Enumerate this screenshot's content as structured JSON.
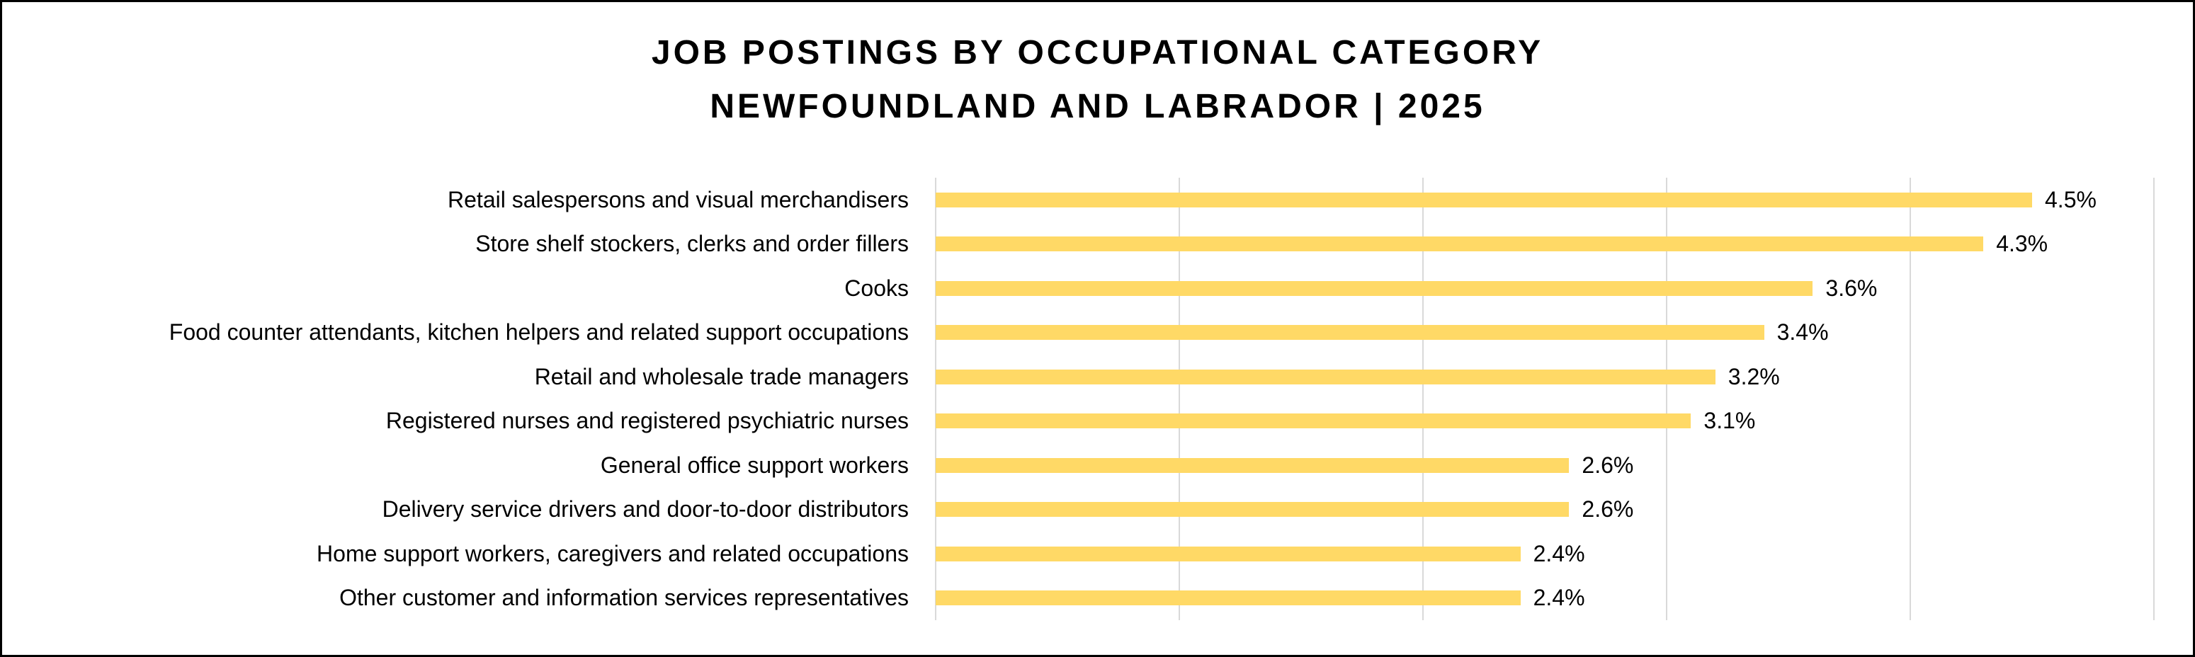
{
  "frame": {
    "background_color": "#FFFFFF",
    "border_color": "#000000"
  },
  "title": {
    "line1": "JOB POSTINGS BY OCCUPATIONAL CATEGORY",
    "line2": "NEWFOUNDLAND AND LABRADOR | 2025"
  },
  "chart_data": {
    "type": "bar",
    "orientation": "horizontal",
    "title": "JOB POSTINGS BY OCCUPATIONAL CATEGORY — NEWFOUNDLAND AND LABRADOR | 2025",
    "categories": [
      "Retail salespersons and visual merchandisers",
      "Store shelf stockers, clerks and order fillers",
      "Cooks",
      "Food counter attendants, kitchen helpers and related support occupations",
      "Retail and wholesale trade managers",
      "Registered nurses and registered psychiatric nurses",
      "General office support workers",
      "Delivery service drivers and door-to-door distributors",
      "Home support workers, caregivers and related occupations",
      "Other customer and information services representatives"
    ],
    "values": [
      4.5,
      4.3,
      3.6,
      3.4,
      3.2,
      3.1,
      2.6,
      2.6,
      2.4,
      2.4
    ],
    "value_labels": [
      "4.5%",
      "4.3%",
      "3.6%",
      "3.4%",
      "3.2%",
      "3.1%",
      "2.6%",
      "2.6%",
      "2.4%",
      "2.4%"
    ],
    "xlabel": "",
    "ylabel": "",
    "xlim": [
      0,
      5
    ],
    "gridline_step": 1,
    "grid": "vertical-only",
    "legend": "none",
    "bar_color": "#FFD966",
    "gridline_color": "#D9D9D9",
    "text_color": "#000000"
  }
}
